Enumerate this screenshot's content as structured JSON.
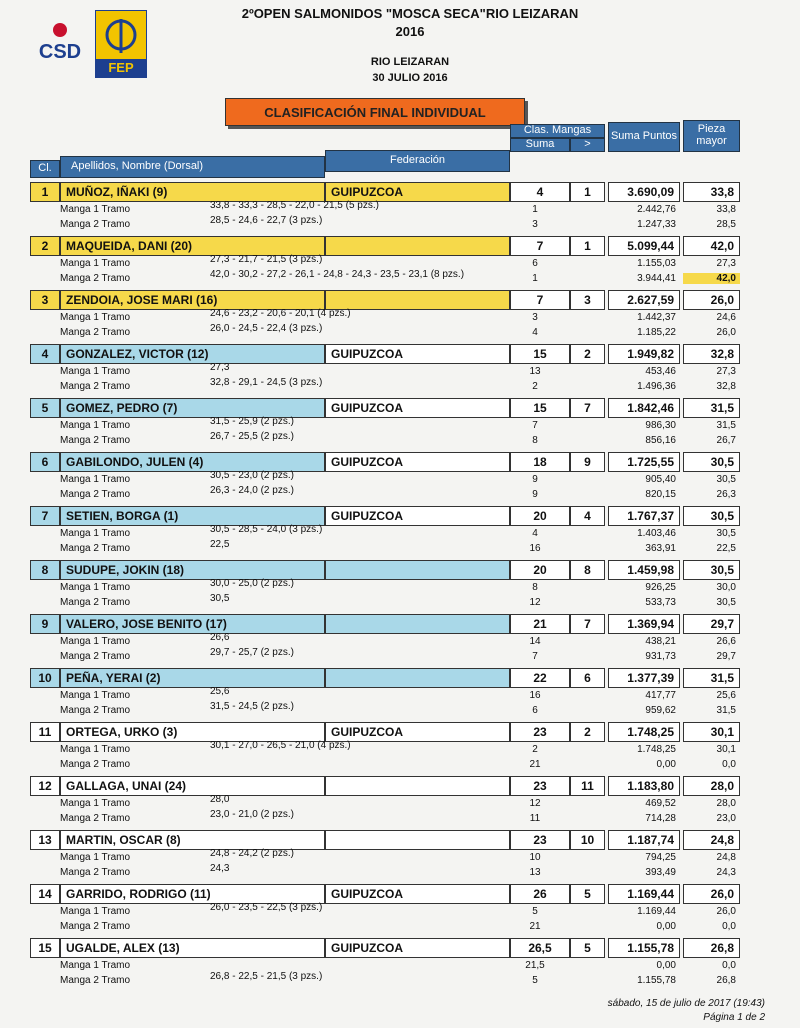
{
  "header": {
    "title": "2ºOPEN SALMONIDOS \"MOSCA SECA\"RIO LEIZARAN",
    "year": "2016",
    "place": "RIO LEIZARAN",
    "date": "30 JULIO 2016",
    "logo_left": "CSD",
    "logo_right": "FEP",
    "banner": "CLASIFICACIÓN FINAL INDIVIDUAL"
  },
  "table": {
    "columns": {
      "rank": "Cl.",
      "name": "Apellidos, Nombre (Dorsal)",
      "federation": "Federación",
      "mangas": "Clas. Mangas",
      "sum": "Suma",
      "gt": ">",
      "points": "Suma Puntos",
      "biggest": "Pieza mayor"
    },
    "entries": [
      {
        "rank": "1",
        "name": "MUÑOZ, IÑAKI (9)",
        "federation": "GUIPUZCOA",
        "sum": "4",
        "gt": "1",
        "points": "3.690,09",
        "biggest": "33,8",
        "manga1": {
          "label": "Manga 1 Tramo",
          "catches": "33,8 - 33,3 - 28,5 - 22,0 - 21,5 (5 pzs.)",
          "sum": "1",
          "points": "2.442,76",
          "biggest": "33,8"
        },
        "manga2": {
          "label": "Manga 2 Tramo",
          "catches": "28,5 - 24,6 - 22,7 (3 pzs.)",
          "sum": "3",
          "points": "1.247,33",
          "biggest": "28,5"
        }
      },
      {
        "rank": "2",
        "name": "MAQUEIDA, DANI (20)",
        "sum": "7",
        "gt": "1",
        "points": "5.099,44",
        "biggest": "42,0",
        "manga1": {
          "label": "Manga 1 Tramo",
          "catches": "27,3 - 21,7 - 21,5 (3 pzs.)",
          "sum": "6",
          "points": "1.155,03",
          "biggest": "27,3"
        },
        "manga2": {
          "label": "Manga 2 Tramo",
          "catches": "42,0 - 30,2 - 27,2 - 26,1 - 24,8 - 24,3 - 23,5 - 23,1 (8 pzs.)",
          "sum": "1",
          "points": "3.944,41",
          "biggest": "42,0"
        }
      },
      {
        "rank": "3",
        "name": "ZENDOIA, JOSE MARI (16)",
        "sum": "7",
        "gt": "3",
        "points": "2.627,59",
        "biggest": "26,0",
        "manga1": {
          "label": "Manga 1 Tramo",
          "catches": "24,6 - 23,2 - 20,6 - 20,1 (4 pzs.)",
          "sum": "3",
          "points": "1.442,37",
          "biggest": "24,6"
        },
        "manga2": {
          "label": "Manga 2 Tramo",
          "catches": "26,0 - 24,5 - 22,4 (3 pzs.)",
          "sum": "4",
          "points": "1.185,22",
          "biggest": "26,0"
        }
      },
      {
        "rank": "4",
        "name": "GONZALEZ, VICTOR (12)",
        "federation": "GUIPUZCOA",
        "sum": "15",
        "gt": "2",
        "points": "1.949,82",
        "biggest": "32,8",
        "manga1": {
          "label": "Manga 1 Tramo",
          "catches": "27,3",
          "sum": "13",
          "points": "453,46",
          "biggest": "27,3"
        },
        "manga2": {
          "label": "Manga 2 Tramo",
          "catches": "32,8 - 29,1 - 24,5 (3 pzs.)",
          "sum": "2",
          "points": "1.496,36",
          "biggest": "32,8"
        }
      },
      {
        "rank": "5",
        "name": "GOMEZ, PEDRO (7)",
        "federation": "GUIPUZCOA",
        "sum": "15",
        "gt": "7",
        "points": "1.842,46",
        "biggest": "31,5",
        "manga1": {
          "label": "Manga 1 Tramo",
          "catches": "31,5 - 25,9 (2 pzs.)",
          "sum": "7",
          "points": "986,30",
          "biggest": "31,5"
        },
        "manga2": {
          "label": "Manga 2 Tramo",
          "catches": "26,7 - 25,5 (2 pzs.)",
          "sum": "8",
          "points": "856,16",
          "biggest": "26,7"
        }
      },
      {
        "rank": "6",
        "name": "GABILONDO, JULEN (4)",
        "federation": "GUIPUZCOA",
        "sum": "18",
        "gt": "9",
        "points": "1.725,55",
        "biggest": "30,5",
        "manga1": {
          "label": "Manga 1 Tramo",
          "catches": "30,5 - 23,0 (2 pzs.)",
          "sum": "9",
          "points": "905,40",
          "biggest": "30,5"
        },
        "manga2": {
          "label": "Manga 2 Tramo",
          "catches": "26,3 - 24,0 (2 pzs.)",
          "sum": "9",
          "points": "820,15",
          "biggest": "26,3"
        }
      },
      {
        "rank": "7",
        "name": "SETIEN, BORGA (1)",
        "federation": "GUIPUZCOA",
        "sum": "20",
        "gt": "4",
        "points": "1.767,37",
        "biggest": "30,5",
        "manga1": {
          "label": "Manga 1 Tramo",
          "catches": "30,5 - 28,5 - 24,0 (3 pzs.)",
          "sum": "4",
          "points": "1.403,46",
          "biggest": "30,5"
        },
        "manga2": {
          "label": "Manga 2 Tramo",
          "catches": "22,5",
          "sum": "16",
          "points": "363,91",
          "biggest": "22,5"
        }
      },
      {
        "rank": "8",
        "name": "SUDUPE, JOKIN (18)",
        "sum": "20",
        "gt": "8",
        "points": "1.459,98",
        "biggest": "30,5",
        "manga1": {
          "label": "Manga 1 Tramo",
          "catches": "30,0 - 25,0 (2 pzs.)",
          "sum": "8",
          "points": "926,25",
          "biggest": "30,0"
        },
        "manga2": {
          "label": "Manga 2 Tramo",
          "catches": "30,5",
          "sum": "12",
          "points": "533,73",
          "biggest": "30,5"
        }
      },
      {
        "rank": "9",
        "name": "VALERO, JOSE BENITO (17)",
        "sum": "21",
        "gt": "7",
        "points": "1.369,94",
        "biggest": "29,7",
        "manga1": {
          "label": "Manga 1 Tramo",
          "catches": "26,6",
          "sum": "14",
          "points": "438,21",
          "biggest": "26,6"
        },
        "manga2": {
          "label": "Manga 2 Tramo",
          "catches": "29,7 - 25,7 (2 pzs.)",
          "sum": "7",
          "points": "931,73",
          "biggest": "29,7"
        }
      },
      {
        "rank": "10",
        "name": "PEÑA, YERAI (2)",
        "sum": "22",
        "gt": "6",
        "points": "1.377,39",
        "biggest": "31,5",
        "manga1": {
          "label": "Manga 1 Tramo",
          "catches": "25,6",
          "sum": "16",
          "points": "417,77",
          "biggest": "25,6"
        },
        "manga2": {
          "label": "Manga 2 Tramo",
          "catches": "31,5 - 24,5 (2 pzs.)",
          "sum": "6",
          "points": "959,62",
          "biggest": "31,5"
        }
      },
      {
        "rank": "11",
        "name": "ORTEGA, URKO (3)",
        "federation": "GUIPUZCOA",
        "sum": "23",
        "gt": "2",
        "points": "1.748,25",
        "biggest": "30,1",
        "manga1": {
          "label": "Manga 1 Tramo",
          "catches": "30,1 - 27,0 - 26,5 - 21,0 (4 pzs.)",
          "sum": "2",
          "points": "1.748,25",
          "biggest": "30,1"
        },
        "manga2": {
          "label": "Manga 2 Tramo",
          "sum": "21",
          "points": "0,00",
          "biggest": "0,0"
        }
      },
      {
        "rank": "12",
        "name": "GALLAGA, UNAI (24)",
        "sum": "23",
        "gt": "11",
        "points": "1.183,80",
        "biggest": "28,0",
        "manga1": {
          "label": "Manga 1 Tramo",
          "catches": "28,0",
          "sum": "12",
          "points": "469,52",
          "biggest": "28,0"
        },
        "manga2": {
          "label": "Manga 2 Tramo",
          "catches": "23,0 - 21,0 (2 pzs.)",
          "sum": "11",
          "points": "714,28",
          "biggest": "23,0"
        }
      },
      {
        "rank": "13",
        "name": "MARTIN, OSCAR (8)",
        "sum": "23",
        "gt": "10",
        "points": "1.187,74",
        "biggest": "24,8",
        "manga1": {
          "label": "Manga 1 Tramo",
          "catches": "24,8 - 24,2 (2 pzs.)",
          "sum": "10",
          "points": "794,25",
          "biggest": "24,8"
        },
        "manga2": {
          "label": "Manga 2 Tramo",
          "catches": "24,3",
          "sum": "13",
          "points": "393,49",
          "biggest": "24,3"
        }
      },
      {
        "rank": "14",
        "name": "GARRIDO, RODRIGO (11)",
        "federation": "GUIPUZCOA",
        "sum": "26",
        "gt": "5",
        "points": "1.169,44",
        "biggest": "26,0",
        "manga1": {
          "label": "Manga 1 Tramo",
          "catches": "26,0 - 23,5 - 22,5 (3 pzs.)",
          "sum": "5",
          "points": "1.169,44",
          "biggest": "26,0"
        },
        "manga2": {
          "label": "Manga 2 Tramo",
          "sum": "21",
          "points": "0,00",
          "biggest": "0,0"
        }
      },
      {
        "rank": "15",
        "name": "UGALDE, ALEX (13)",
        "federation": "GUIPUZCOA",
        "sum": "26,5",
        "gt": "5",
        "points": "1.155,78",
        "biggest": "26,8",
        "manga1": {
          "label": "Manga 1 Tramo",
          "sum": "21,5",
          "points": "0,00",
          "biggest": "0,0"
        },
        "manga2": {
          "label": "Manga 2 Tramo",
          "catches": "26,8 - 22,5 - 21,5 (3 pzs.)",
          "sum": "5",
          "points": "1.155,78",
          "biggest": "26,8"
        }
      }
    ]
  },
  "footer": {
    "timestamp": "sábado, 15 de julio de 2017 (19:43)",
    "page": "Página 1 de 2"
  }
}
